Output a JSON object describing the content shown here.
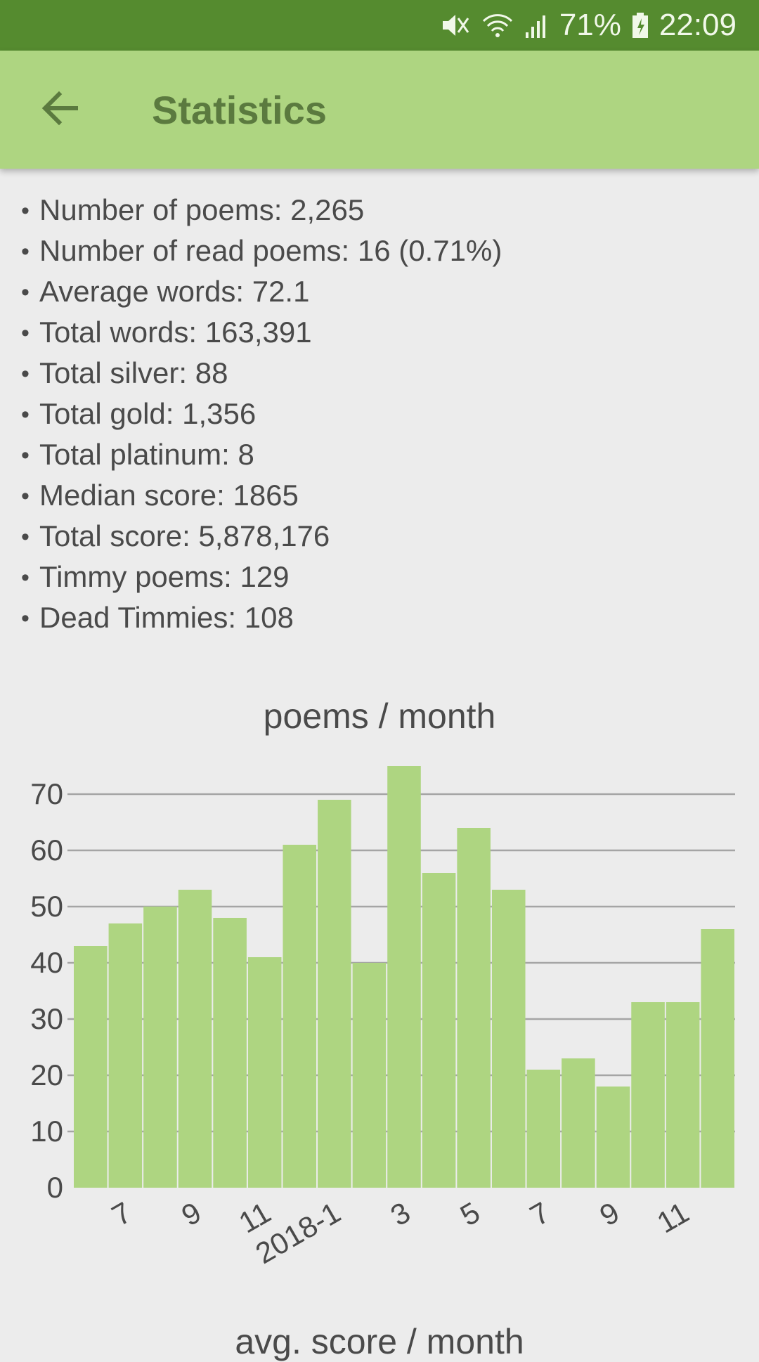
{
  "status_bar": {
    "battery": "71%",
    "time": "22:09",
    "icons": [
      "mute-icon",
      "wifi-icon",
      "signal-icon",
      "battery-charging-icon"
    ]
  },
  "app_bar": {
    "title": "Statistics",
    "back_icon": "arrow-left-icon"
  },
  "stats": [
    "Number of poems: 2,265",
    "Number of read poems: 16 (0.71%)",
    "Average words: 72.1",
    "Total words: 163,391",
    "Total silver: 88",
    "Total gold: 1,356",
    "Total platinum: 8",
    "Median score: 1865",
    "Total score: 5,878,176",
    "Timmy poems: 129",
    "Dead Timmies: 108"
  ],
  "colors": {
    "status_bar": "#558b2f",
    "app_bar": "#aed581",
    "bar_fill": "#aed581",
    "grid": "#a5a5a5",
    "background": "#ececec"
  },
  "chart_data": [
    {
      "type": "bar",
      "title": "poems / month",
      "xlabel": "",
      "ylabel": "",
      "ylim": [
        0,
        75
      ],
      "yticks": [
        0,
        10,
        20,
        30,
        40,
        50,
        60,
        70
      ],
      "grid": true,
      "categories": [
        "2017-6",
        "2017-7",
        "2017-8",
        "2017-9",
        "2017-10",
        "2017-11",
        "2017-12",
        "2018-1",
        "2018-2",
        "2018-3",
        "2018-4",
        "2018-5",
        "2018-6",
        "2018-7",
        "2018-8",
        "2018-9",
        "2018-10",
        "2018-11",
        "2018-12"
      ],
      "tick_labels": [
        "",
        "7",
        "",
        "9",
        "",
        "11",
        "",
        "2018-1",
        "",
        "3",
        "",
        "5",
        "",
        "7",
        "",
        "9",
        "",
        "11",
        ""
      ],
      "values": [
        43,
        47,
        50,
        53,
        48,
        41,
        61,
        69,
        40,
        75,
        56,
        64,
        53,
        21,
        23,
        18,
        33,
        33,
        46
      ]
    },
    {
      "title": "avg. score / month"
    }
  ]
}
